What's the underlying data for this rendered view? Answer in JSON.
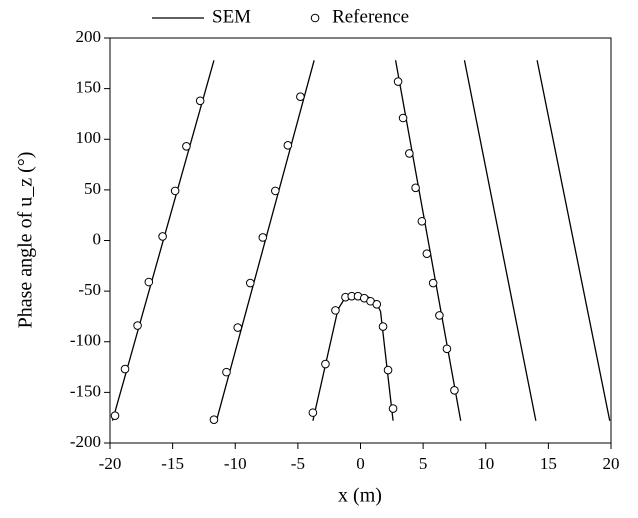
{
  "chart_data": {
    "type": "line",
    "xlabel": "x (m)",
    "ylabel": "Phase angle of u_z (°)",
    "xlim": [
      -20,
      20
    ],
    "ylim": [
      -200,
      200
    ],
    "xticks": [
      -20,
      -15,
      -10,
      -5,
      0,
      5,
      10,
      15,
      20
    ],
    "yticks": [
      -200,
      -150,
      -100,
      -50,
      0,
      50,
      100,
      150,
      200
    ],
    "legend": "top-outside",
    "series": [
      {
        "name": "SEM",
        "color": "#000000",
        "kind": "line",
        "x": [
          -19.8,
          -11.7,
          null,
          -11.5,
          -3.7,
          null,
          -3.8,
          -1.8,
          -1.2,
          -0.5,
          0.5,
          1.2,
          1.6,
          2.6,
          null,
          2.8,
          8.0,
          null,
          8.3,
          14.0,
          null,
          14.1,
          19.9
        ],
        "values": [
          -178,
          178,
          null,
          -178,
          178,
          null,
          -178,
          -68,
          -56,
          -53,
          -55,
          -60,
          -70,
          -178,
          null,
          178,
          -178,
          null,
          178,
          -178,
          null,
          178,
          -178
        ]
      },
      {
        "name": "Reference",
        "color": "#000000",
        "kind": "marker",
        "x": [
          -19.6,
          -18.8,
          -17.8,
          -16.9,
          -15.8,
          -14.8,
          -13.9,
          -12.8,
          -11.7,
          -10.7,
          -9.8,
          -8.8,
          -7.8,
          -6.8,
          -5.8,
          -4.8,
          -3.8,
          -2.8,
          -2.0,
          -1.2,
          -0.7,
          -0.2,
          0.3,
          0.8,
          1.3,
          1.8,
          2.2,
          2.6,
          3.0,
          3.4,
          3.9,
          4.4,
          4.9,
          5.3,
          5.8,
          6.3,
          6.9,
          7.5
        ],
        "values": [
          -173,
          -127,
          -84,
          -41,
          4,
          49,
          93,
          138,
          -177,
          -130,
          -86,
          -42,
          3,
          49,
          94,
          142,
          -170,
          -122,
          -69,
          -56,
          -55,
          -55,
          -57,
          -60,
          -63,
          -85,
          -128,
          -166,
          157,
          121,
          86,
          52,
          19,
          -13,
          -42,
          -74,
          -107,
          -148
        ]
      }
    ]
  }
}
